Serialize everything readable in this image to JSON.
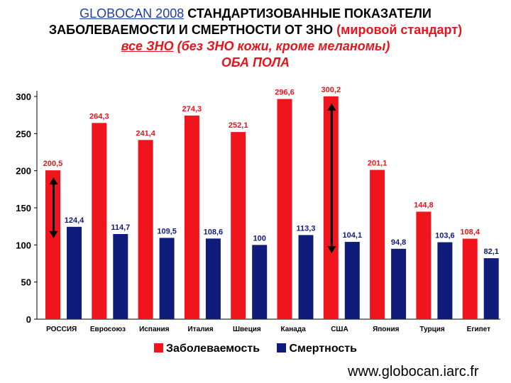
{
  "title": {
    "line1_prefix": "GLOBOCAN 2008",
    "line1_rest": "СТАНДАРТИЗОВАННЫЕ ПОКАЗАТЕЛИ",
    "line2_main": "ЗАБОЛЕВАЕМОСТИ И СМЕРТНОСТИ ОТ ЗНО",
    "line2_paren": "(мировой стандарт)",
    "line3_under": "все ЗНО",
    "line3_rest": "(без ЗНО кожи, кроме меланомы)",
    "line4": "ОБА ПОЛА"
  },
  "colors": {
    "incidence": "#f0141c",
    "mortality": "#101c7a",
    "accent_red": "#e8141b"
  },
  "chart_data": {
    "type": "bar",
    "categories": [
      "РОССИЯ",
      "Евросоюз",
      "Испания",
      "Италия",
      "Швеция",
      "Канада",
      "США",
      "Япония",
      "Турция",
      "Египет"
    ],
    "series": [
      {
        "name": "Заболеваемость",
        "values": [
          200.5,
          264.3,
          241.4,
          274.3,
          252.1,
          296.6,
          300.2,
          201.1,
          144.8,
          108.4
        ],
        "labels": [
          "200,5",
          "264,3",
          "241,4",
          "274,3",
          "252,1",
          "296,6",
          "300,2",
          "201,1",
          "144,8",
          "108,4"
        ]
      },
      {
        "name": "Смертность",
        "values": [
          124.4,
          114.7,
          109.5,
          108.6,
          100,
          113.3,
          104.1,
          94.8,
          103.6,
          82.1
        ],
        "labels": [
          "124,4",
          "114,7",
          "109,5",
          "108,6",
          "100",
          "113,3",
          "104,1",
          "94,8",
          "103,6",
          "82,1"
        ]
      }
    ],
    "ylim": [
      0,
      300
    ],
    "yticks": [
      0,
      50,
      100,
      150,
      200,
      250,
      300
    ],
    "legend_position": "bottom",
    "grid": false
  },
  "source": "www.globocan.iarc.fr"
}
